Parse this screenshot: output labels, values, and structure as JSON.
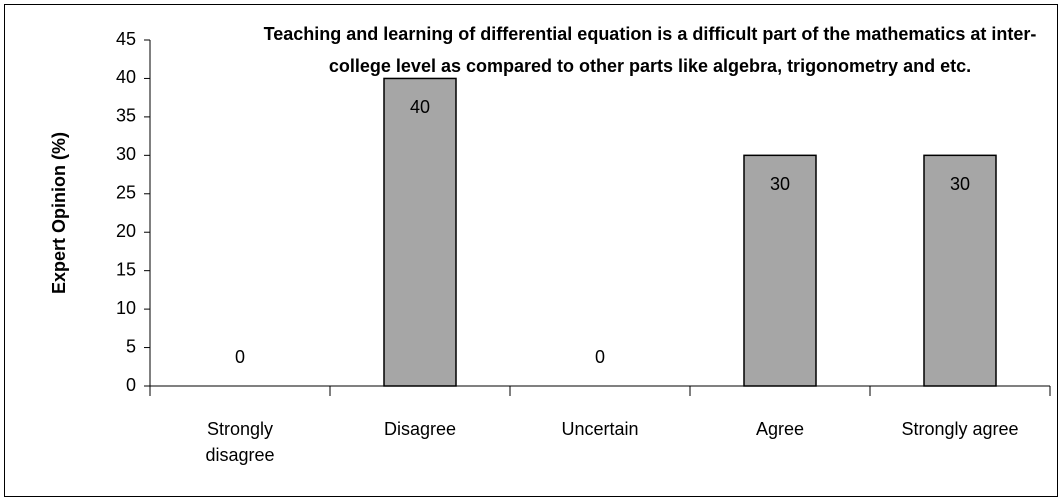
{
  "chart_data": {
    "type": "bar",
    "title": "Teaching and learning of differential equation is a difficult part of the mathematics at inter-college level as compared to other parts like algebra, trigonometry and etc.",
    "y_label": "Expert Opinion (%)",
    "categories": [
      "Strongly disagree",
      "Disagree",
      "Uncertain",
      "Agree",
      "Strongly agree"
    ],
    "values": [
      0,
      40,
      0,
      30,
      30
    ],
    "color": "#a6a6a6",
    "ylim": [
      0,
      45
    ],
    "yticks": [
      0,
      5,
      10,
      15,
      20,
      25,
      30,
      35,
      40,
      45
    ],
    "grid": false
  }
}
